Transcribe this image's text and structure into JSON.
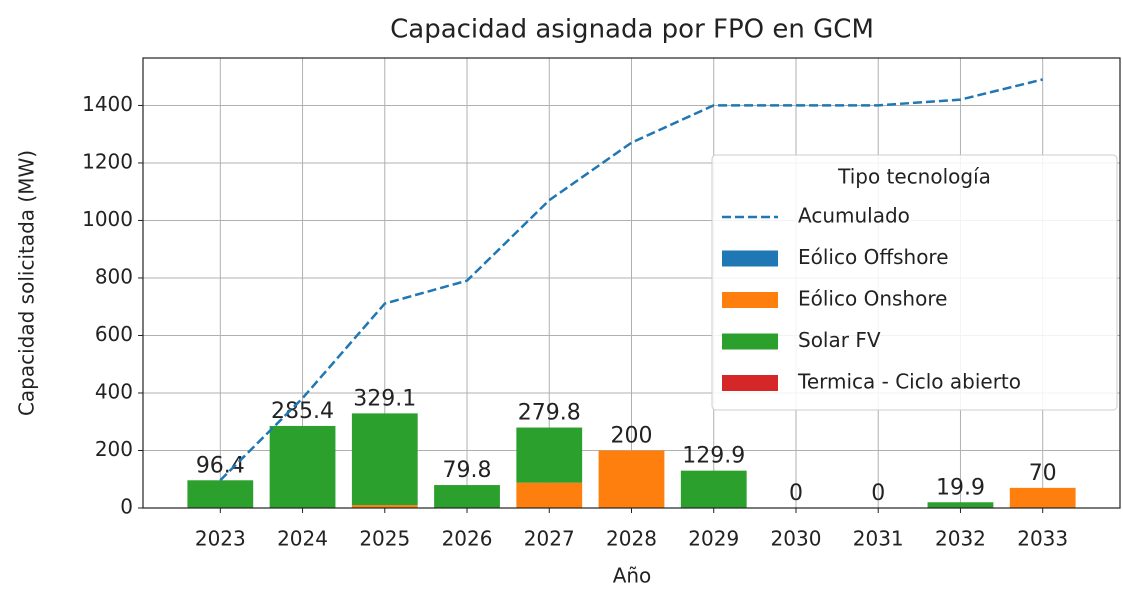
{
  "chart_data": {
    "type": "bar",
    "stacked": true,
    "title": "Capacidad asignada por FPO en GCM",
    "xlabel": "Año",
    "ylabel": "Capacidad solicitada (MW)",
    "categories": [
      "2023",
      "2024",
      "2025",
      "2026",
      "2027",
      "2028",
      "2029",
      "2030",
      "2031",
      "2032",
      "2033"
    ],
    "series": [
      {
        "name": "Eólico Offshore",
        "color": "#1f77b4",
        "values": [
          0,
          0,
          0,
          0,
          0,
          0,
          0,
          0,
          0,
          0,
          0
        ]
      },
      {
        "name": "Eólico Onshore",
        "color": "#ff7f0e",
        "values": [
          0,
          0,
          10,
          0,
          88,
          200,
          0,
          0,
          0,
          0,
          70
        ]
      },
      {
        "name": "Solar FV",
        "color": "#2ca02c",
        "values": [
          96.4,
          285.4,
          319.1,
          79.8,
          191.8,
          0,
          129.9,
          0,
          0,
          19.9,
          0
        ]
      },
      {
        "name": "Termica - Ciclo abierto",
        "color": "#d62728",
        "values": [
          0,
          0,
          0,
          0,
          0,
          0,
          0,
          0,
          0,
          0,
          0
        ]
      }
    ],
    "totals": [
      96.4,
      285.4,
      329.1,
      79.8,
      279.8,
      200,
      129.9,
      0,
      0,
      19.9,
      70
    ],
    "line": {
      "name": "Acumulado",
      "color": "#1f77b4",
      "dashed": true,
      "values": [
        96.4,
        381.8,
        710.9,
        790.7,
        1070.5,
        1270.5,
        1400.4,
        1400.4,
        1400.4,
        1420.3,
        1490.3
      ]
    },
    "legend_title": "Tipo tecnología",
    "legend": "upper right",
    "ylim": [
      0,
      1565
    ],
    "yticks": [
      0,
      200,
      400,
      600,
      800,
      1000,
      1200,
      1400
    ],
    "grid": true
  }
}
